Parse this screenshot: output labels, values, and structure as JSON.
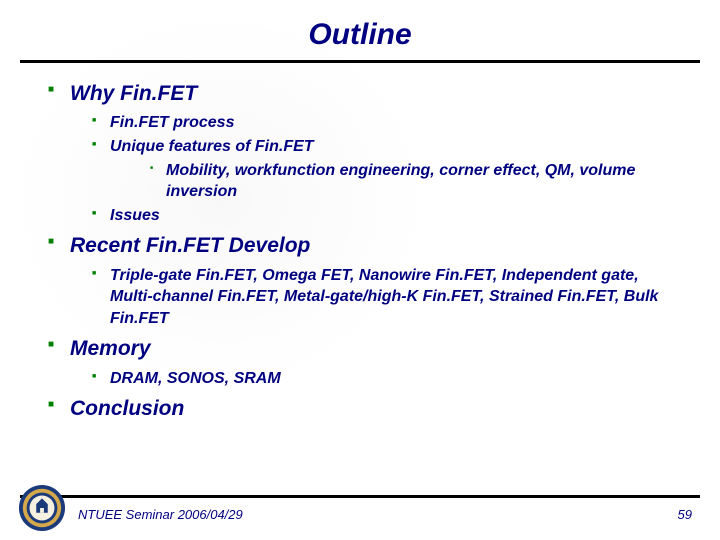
{
  "colors": {
    "title": "#000080",
    "text": "#000080",
    "bullet": "#008000",
    "rule": "#000000",
    "seal_blue": "#1b3a7a",
    "seal_gold": "#d4a84b",
    "background": "#ffffff"
  },
  "typography": {
    "title_fontsize": 30,
    "l1_fontsize": 21,
    "l2_fontsize": 16,
    "l3_fontsize": 16,
    "footer_fontsize": 13,
    "font_style": "italic",
    "font_weight": "bold",
    "font_family": "Verdana"
  },
  "title": "Outline",
  "items": [
    {
      "label": "Why Fin.FET",
      "children": [
        {
          "label": "Fin.FET process"
        },
        {
          "label": "Unique features of Fin.FET",
          "children": [
            {
              "label": "Mobility, workfunction engineering, corner effect, QM, volume inversion"
            }
          ]
        },
        {
          "label": "Issues"
        }
      ]
    },
    {
      "label": "Recent Fin.FET Develop",
      "children": [
        {
          "label": "Triple-gate Fin.FET, Omega FET, Nanowire Fin.FET, Independent gate, Multi-channel Fin.FET, Metal-gate/high-K Fin.FET, Strained Fin.FET, Bulk Fin.FET"
        }
      ]
    },
    {
      "label": "Memory",
      "children": [
        {
          "label": "DRAM, SONOS, SRAM"
        }
      ]
    },
    {
      "label": "Conclusion"
    }
  ],
  "footer": "NTUEE Seminar 2006/04/29",
  "page_number": "59"
}
